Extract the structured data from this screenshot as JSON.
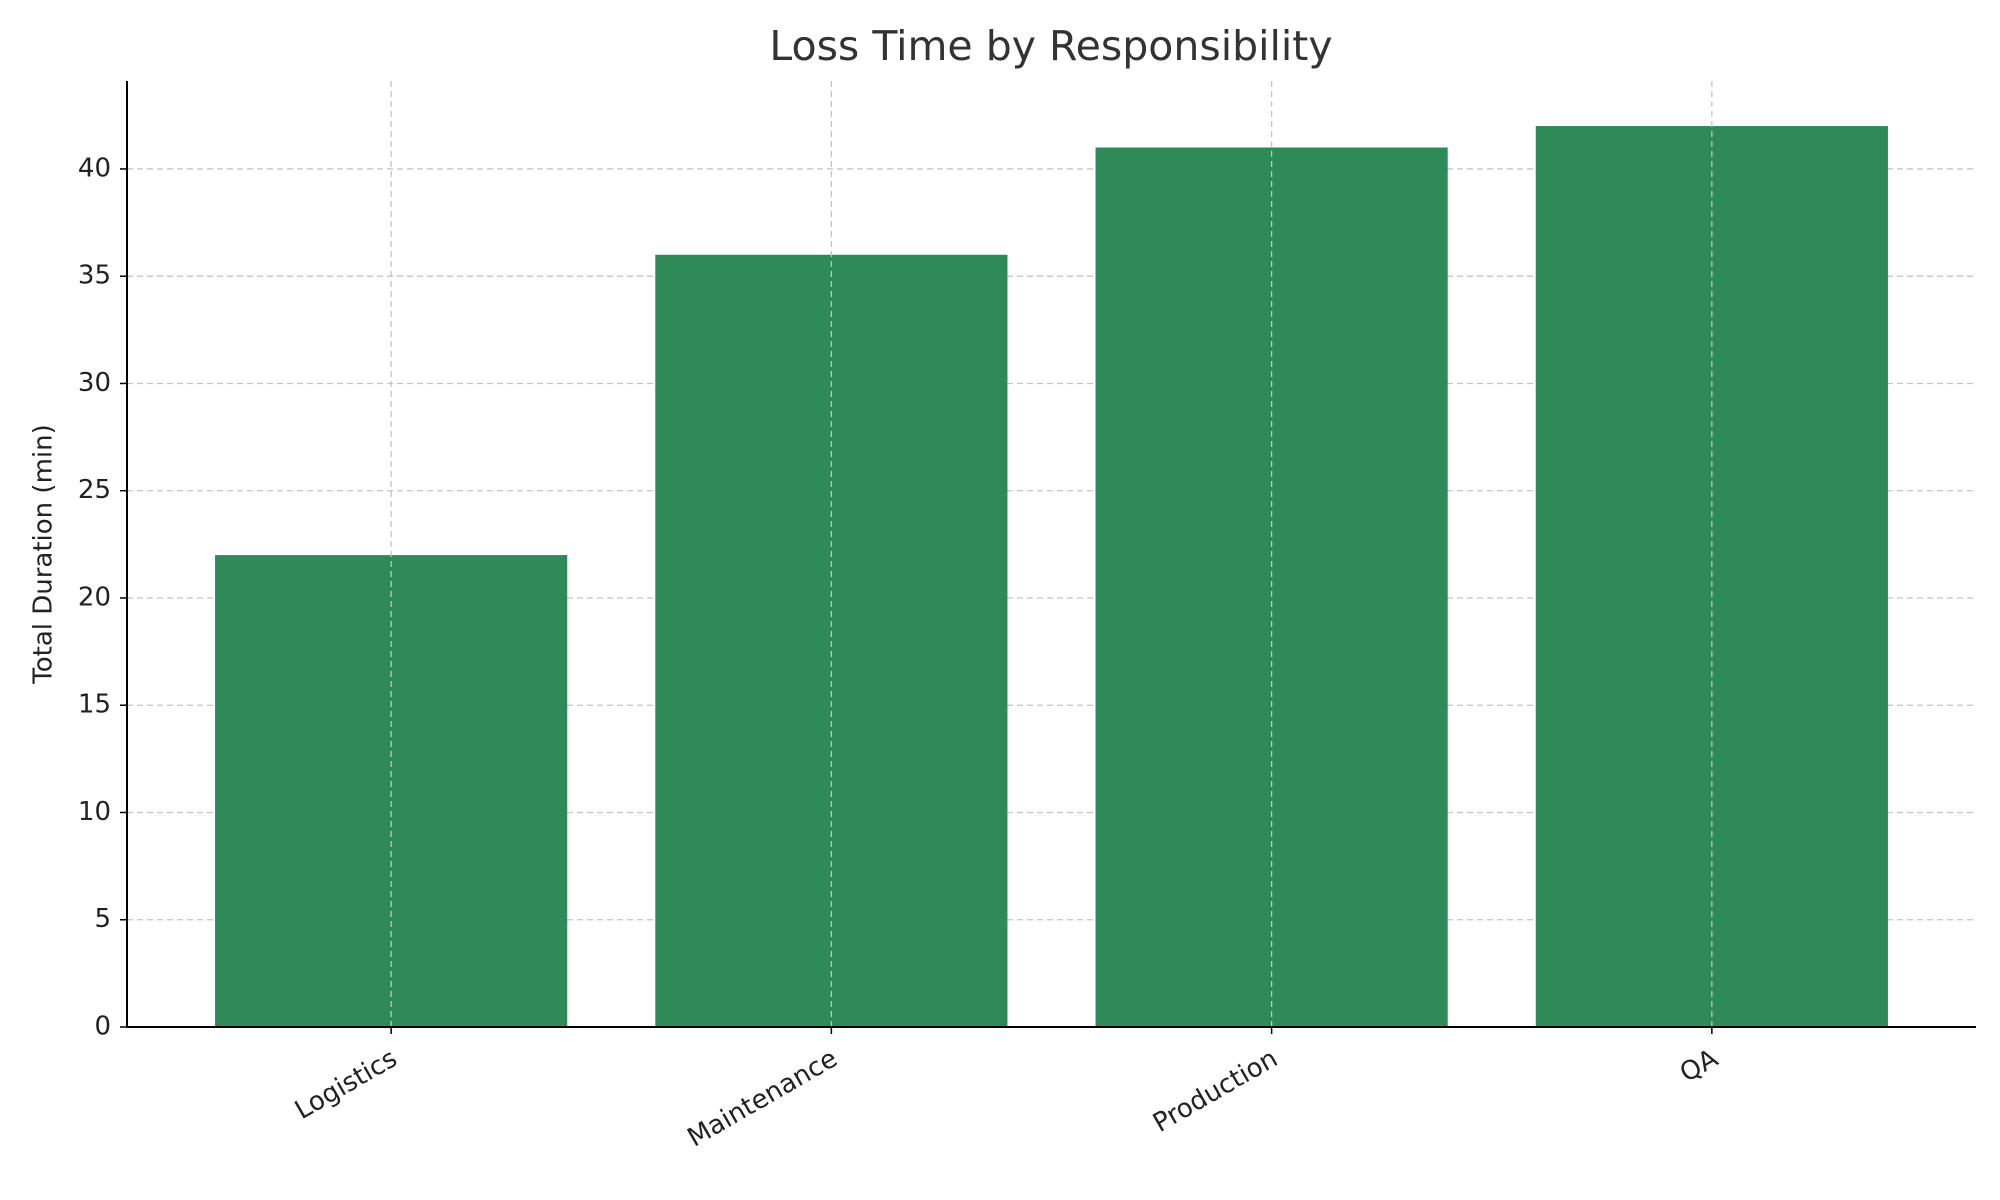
{
  "chart_data": {
    "type": "bar",
    "title": "Loss Time by Responsibility",
    "ylabel": "Total Duration (min)",
    "categories": [
      "Logistics",
      "Maintenance",
      "Production",
      "QA"
    ],
    "values": [
      22,
      36,
      41,
      42
    ],
    "color": "#2e8b57",
    "ylim": [
      0,
      44.1
    ],
    "yticks": [
      0,
      5,
      10,
      15,
      20,
      25,
      30,
      35,
      40
    ],
    "grid": true
  }
}
